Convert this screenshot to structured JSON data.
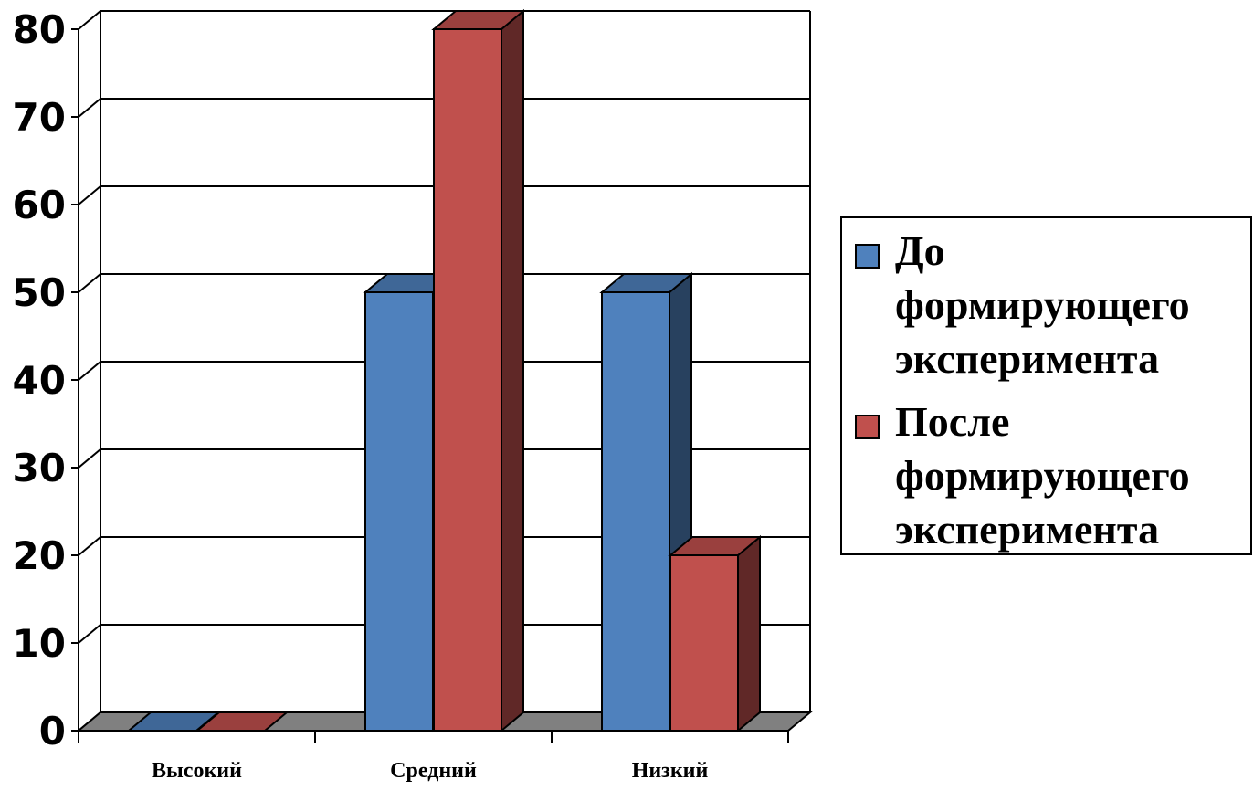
{
  "chart_data": {
    "type": "bar",
    "variant": "3d-clustered-column",
    "categories": [
      "Высокий",
      "Средний",
      "Низкий"
    ],
    "series": [
      {
        "name": "До формирующего эксперимента",
        "values": [
          0,
          50,
          50
        ],
        "color": "#4F81BD"
      },
      {
        "name": "После формирующего эксперимента",
        "values": [
          0,
          80,
          20
        ],
        "color": "#C0504D"
      }
    ],
    "ylim": [
      0,
      80
    ],
    "yticks": [
      0,
      10,
      20,
      30,
      40,
      50,
      60,
      70,
      80
    ],
    "grid": true,
    "legend_position": "right",
    "title": "",
    "xlabel": "",
    "ylabel": ""
  },
  "legend": {
    "items": [
      {
        "label": "До\nформирующего\nэксперимента",
        "color": "#4F81BD"
      },
      {
        "label": "После\nформирующего\nэксперимента",
        "color": "#C0504D"
      }
    ]
  }
}
